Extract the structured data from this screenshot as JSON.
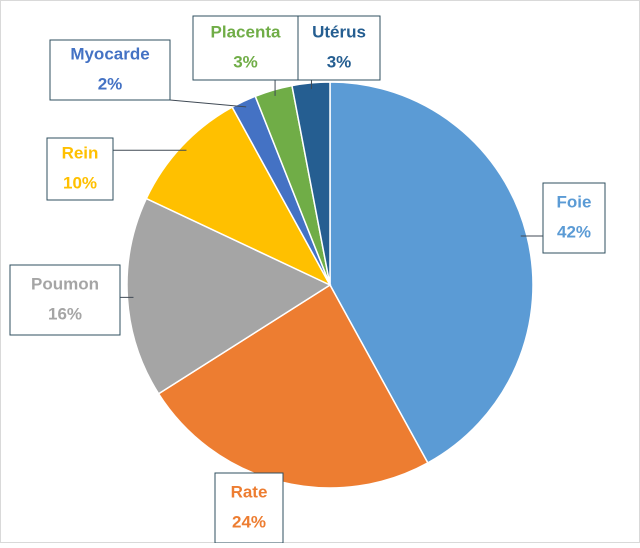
{
  "chart_data": {
    "type": "pie",
    "categories": [
      "Foie",
      "Rate",
      "Poumon",
      "Rein",
      "Myocarde",
      "Placenta",
      "Utérus"
    ],
    "values": [
      42,
      24,
      16,
      10,
      2,
      3,
      3
    ],
    "value_labels": [
      "42%",
      "24%",
      "16%",
      "10%",
      "2%",
      "3%",
      "3%"
    ],
    "colors": [
      "#5b9bd5",
      "#ed7d31",
      "#a5a5a5",
      "#ffc000",
      "#4472c4",
      "#70ad47",
      "#255e91"
    ]
  }
}
